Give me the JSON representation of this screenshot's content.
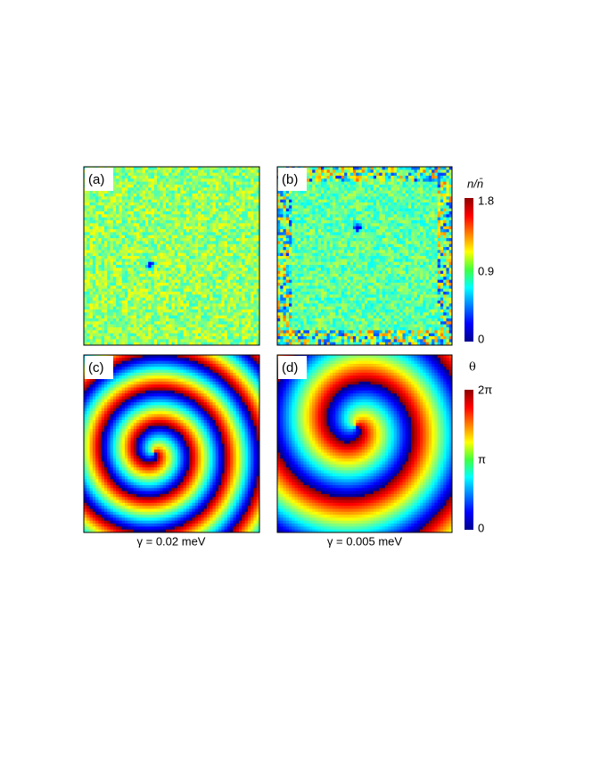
{
  "panels": [
    {
      "label": "(a)"
    },
    {
      "label": "(b)"
    },
    {
      "label": "(c)"
    },
    {
      "label": "(d)"
    }
  ],
  "density_colorbar": {
    "title": "n/n̄",
    "ticks": [
      "1.8",
      "0.9",
      "0"
    ]
  },
  "phase_colorbar": {
    "title": "θ",
    "ticks": [
      "2π",
      "π",
      "0"
    ]
  },
  "captions": [
    "γ = 0.02 meV",
    "γ = 0.005 meV"
  ]
}
